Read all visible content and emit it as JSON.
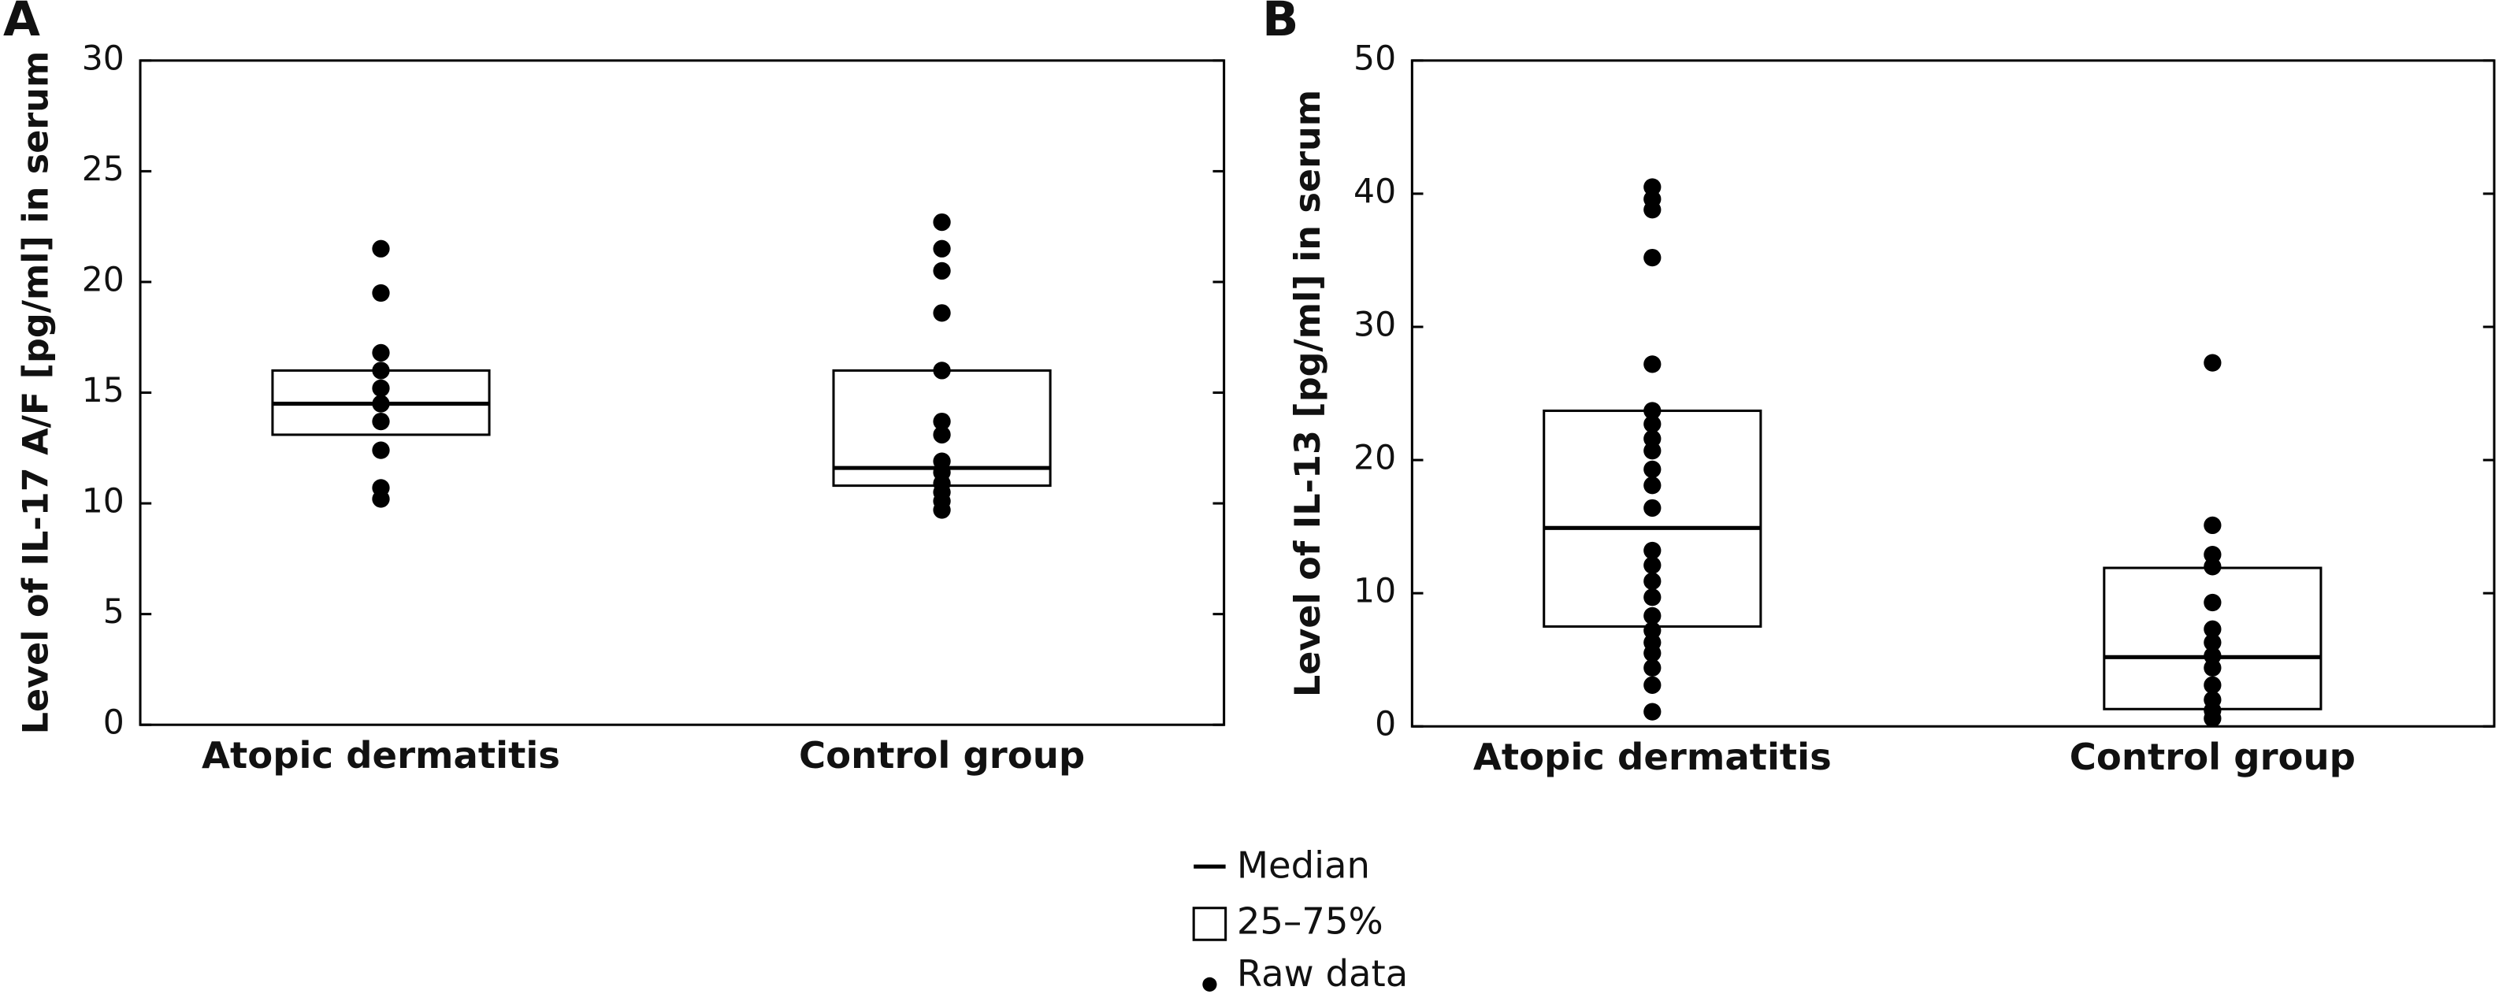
{
  "legend": [
    "Median",
    "25–75%",
    "Raw data"
  ],
  "chart_data": [
    {
      "type": "box",
      "panel": "A",
      "ylabel": "Level of IL-17 A/F [pg/ml] in serum",
      "categories": [
        "Atopic dermatitis",
        "Control group"
      ],
      "ylim": [
        0,
        30
      ],
      "yticks": [
        0,
        5,
        10,
        15,
        20,
        25,
        30
      ],
      "boxes": [
        {
          "q1": 13.1,
          "median": 14.5,
          "q3": 16.0,
          "points": [
            21.5,
            19.5,
            16.8,
            16.0,
            15.2,
            14.5,
            13.7,
            12.4,
            10.7,
            10.2
          ]
        },
        {
          "q1": 10.8,
          "median": 11.6,
          "q3": 16.0,
          "points": [
            22.7,
            21.5,
            20.5,
            18.6,
            16.0,
            13.7,
            13.1,
            11.9,
            11.4,
            10.9,
            10.5,
            10.1,
            9.7
          ]
        }
      ]
    },
    {
      "type": "box",
      "panel": "B",
      "ylabel": "Level of IL-13 [pg/ml] in serum",
      "categories": [
        "Atopic dermatitis",
        "Control group"
      ],
      "ylim": [
        0,
        50
      ],
      "yticks": [
        0,
        10,
        20,
        30,
        40,
        50
      ],
      "boxes": [
        {
          "q1": 7.5,
          "median": 14.9,
          "q3": 23.7,
          "points": [
            40.5,
            39.6,
            38.8,
            35.2,
            27.2,
            23.7,
            22.7,
            21.6,
            20.7,
            19.3,
            18.1,
            16.4,
            13.2,
            12.1,
            10.9,
            9.7,
            8.3,
            7.2,
            6.3,
            5.5,
            4.4,
            3.1,
            1.1
          ]
        },
        {
          "q1": 1.3,
          "median": 5.2,
          "q3": 11.9,
          "points": [
            27.3,
            15.1,
            12.9,
            12.0,
            9.3,
            7.3,
            6.3,
            5.3,
            4.4,
            3.1,
            2.0,
            1.2,
            0.6
          ]
        }
      ]
    }
  ]
}
